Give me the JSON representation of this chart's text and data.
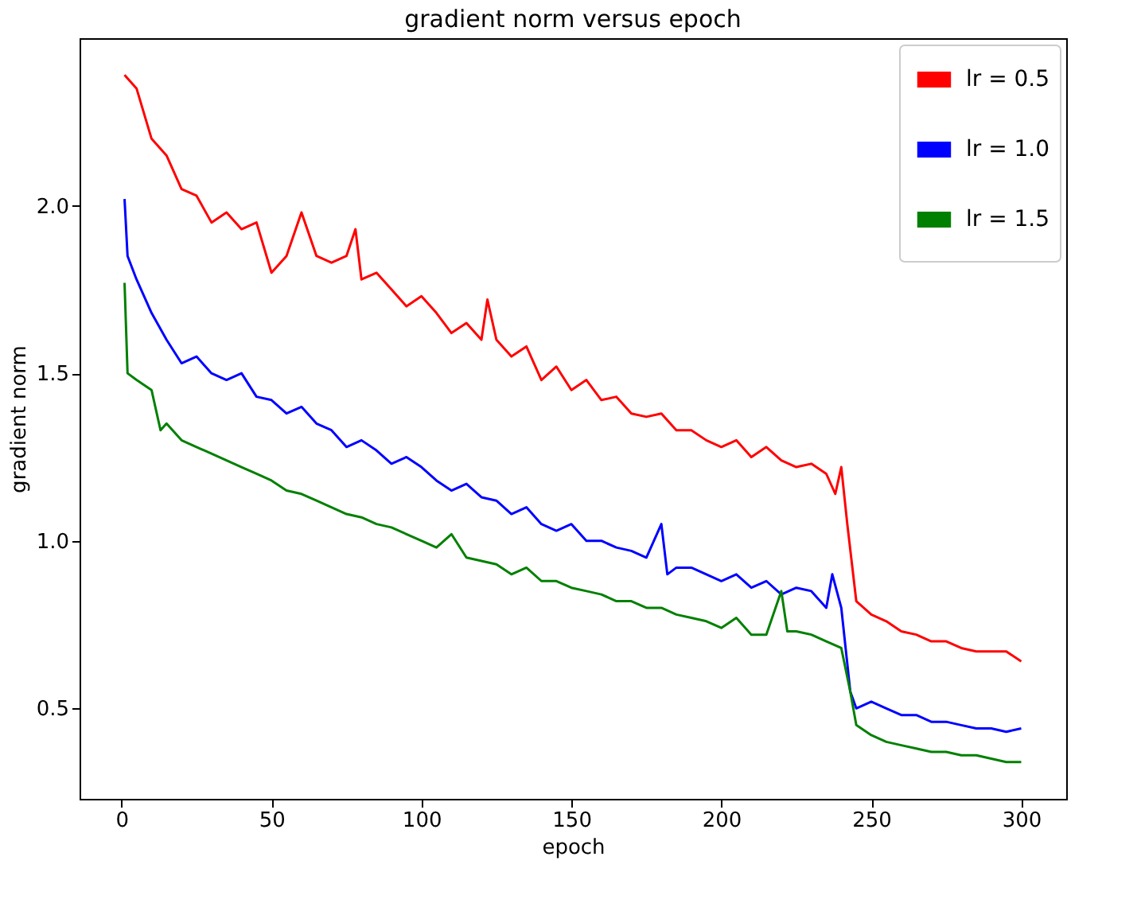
{
  "chart_data": {
    "type": "line",
    "title": "gradient norm versus epoch",
    "xlabel": "epoch",
    "ylabel": "gradient norm",
    "xlim": [
      -14,
      315
    ],
    "ylim": [
      0.23,
      2.5
    ],
    "xticks": [
      0,
      50,
      100,
      150,
      200,
      250,
      300
    ],
    "yticks": [
      {
        "value": 0.5,
        "label": "0.5"
      },
      {
        "value": 1.0,
        "label": "1.0"
      },
      {
        "value": 1.5,
        "label": "1.5"
      },
      {
        "value": 2.0,
        "label": "2.0"
      }
    ],
    "grid": false,
    "legend": "top right",
    "marker": "none",
    "line_style": "solid",
    "series": [
      {
        "name": "lr = 0.5",
        "color": "#ff0000",
        "x": [
          1,
          5,
          10,
          15,
          20,
          25,
          30,
          35,
          40,
          45,
          50,
          55,
          60,
          65,
          70,
          75,
          78,
          80,
          85,
          90,
          95,
          100,
          105,
          110,
          115,
          120,
          122,
          125,
          130,
          135,
          140,
          145,
          150,
          155,
          160,
          165,
          170,
          175,
          180,
          185,
          190,
          195,
          200,
          205,
          210,
          215,
          220,
          225,
          230,
          235,
          238,
          240,
          242,
          245,
          250,
          255,
          260,
          265,
          270,
          275,
          280,
          285,
          290,
          295,
          300
        ],
        "values": [
          2.39,
          2.35,
          2.2,
          2.15,
          2.05,
          2.03,
          1.95,
          1.98,
          1.93,
          1.95,
          1.8,
          1.85,
          1.98,
          1.85,
          1.83,
          1.85,
          1.93,
          1.78,
          1.8,
          1.75,
          1.7,
          1.73,
          1.68,
          1.62,
          1.65,
          1.6,
          1.72,
          1.6,
          1.55,
          1.58,
          1.48,
          1.52,
          1.45,
          1.48,
          1.42,
          1.43,
          1.38,
          1.37,
          1.38,
          1.33,
          1.33,
          1.3,
          1.28,
          1.3,
          1.25,
          1.28,
          1.24,
          1.22,
          1.23,
          1.2,
          1.14,
          1.22,
          1.05,
          0.82,
          0.78,
          0.76,
          0.73,
          0.72,
          0.7,
          0.7,
          0.68,
          0.67,
          0.67,
          0.67,
          0.64
        ]
      },
      {
        "name": "lr = 1.0",
        "color": "#0000ff",
        "x": [
          1,
          2,
          5,
          10,
          15,
          20,
          25,
          30,
          35,
          40,
          45,
          50,
          55,
          60,
          65,
          70,
          75,
          80,
          85,
          90,
          95,
          100,
          105,
          110,
          115,
          120,
          125,
          130,
          135,
          140,
          145,
          150,
          155,
          160,
          165,
          170,
          175,
          180,
          182,
          185,
          190,
          195,
          200,
          205,
          210,
          215,
          220,
          225,
          230,
          235,
          237,
          240,
          243,
          245,
          250,
          255,
          260,
          265,
          270,
          275,
          280,
          285,
          290,
          295,
          300
        ],
        "values": [
          2.02,
          1.85,
          1.78,
          1.68,
          1.6,
          1.53,
          1.55,
          1.5,
          1.48,
          1.5,
          1.43,
          1.42,
          1.38,
          1.4,
          1.35,
          1.33,
          1.28,
          1.3,
          1.27,
          1.23,
          1.25,
          1.22,
          1.18,
          1.15,
          1.17,
          1.13,
          1.12,
          1.08,
          1.1,
          1.05,
          1.03,
          1.05,
          1.0,
          1.0,
          0.98,
          0.97,
          0.95,
          1.05,
          0.9,
          0.92,
          0.92,
          0.9,
          0.88,
          0.9,
          0.86,
          0.88,
          0.84,
          0.86,
          0.85,
          0.8,
          0.9,
          0.8,
          0.55,
          0.5,
          0.52,
          0.5,
          0.48,
          0.48,
          0.46,
          0.46,
          0.45,
          0.44,
          0.44,
          0.43,
          0.44
        ]
      },
      {
        "name": "lr = 1.5",
        "color": "#008000",
        "x": [
          1,
          2,
          5,
          10,
          13,
          15,
          20,
          25,
          30,
          35,
          40,
          45,
          50,
          55,
          60,
          65,
          70,
          75,
          80,
          85,
          90,
          95,
          100,
          105,
          110,
          115,
          120,
          125,
          130,
          135,
          140,
          145,
          150,
          155,
          160,
          165,
          170,
          175,
          180,
          185,
          190,
          195,
          200,
          205,
          210,
          215,
          220,
          222,
          225,
          230,
          235,
          240,
          243,
          245,
          250,
          255,
          260,
          265,
          270,
          275,
          280,
          285,
          290,
          295,
          300
        ],
        "values": [
          1.77,
          1.5,
          1.48,
          1.45,
          1.33,
          1.35,
          1.3,
          1.28,
          1.26,
          1.24,
          1.22,
          1.2,
          1.18,
          1.15,
          1.14,
          1.12,
          1.1,
          1.08,
          1.07,
          1.05,
          1.04,
          1.02,
          1.0,
          0.98,
          1.02,
          0.95,
          0.94,
          0.93,
          0.9,
          0.92,
          0.88,
          0.88,
          0.86,
          0.85,
          0.84,
          0.82,
          0.82,
          0.8,
          0.8,
          0.78,
          0.77,
          0.76,
          0.74,
          0.77,
          0.72,
          0.72,
          0.85,
          0.73,
          0.73,
          0.72,
          0.7,
          0.68,
          0.55,
          0.45,
          0.42,
          0.4,
          0.39,
          0.38,
          0.37,
          0.37,
          0.36,
          0.36,
          0.35,
          0.34,
          0.34
        ]
      }
    ]
  }
}
